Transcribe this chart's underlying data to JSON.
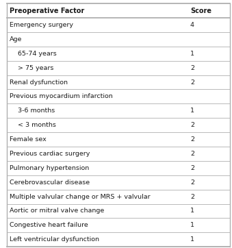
{
  "title_col1": "Preoperative Factor",
  "title_col2": "Score",
  "rows": [
    {
      "factor": "Emergency surgery",
      "score": "4",
      "indent": false,
      "header_row": false
    },
    {
      "factor": "Age",
      "score": "",
      "indent": false,
      "header_row": true
    },
    {
      "factor": "65-74 years",
      "score": "1",
      "indent": true,
      "header_row": false
    },
    {
      "factor": "> 75 years",
      "score": "2",
      "indent": true,
      "header_row": false
    },
    {
      "factor": "Renal dysfunction",
      "score": "2",
      "indent": false,
      "header_row": false
    },
    {
      "factor": "Previous myocardium infarction",
      "score": "",
      "indent": false,
      "header_row": true
    },
    {
      "factor": "3-6 months",
      "score": "1",
      "indent": true,
      "header_row": false
    },
    {
      "factor": "< 3 months",
      "score": "2",
      "indent": true,
      "header_row": false
    },
    {
      "factor": "Female sex",
      "score": "2",
      "indent": false,
      "header_row": false
    },
    {
      "factor": "Previous cardiac surgery",
      "score": "2",
      "indent": false,
      "header_row": false
    },
    {
      "factor": "Pulmonary hypertension",
      "score": "2",
      "indent": false,
      "header_row": false
    },
    {
      "factor": "Cerebrovascular disease",
      "score": "2",
      "indent": false,
      "header_row": false
    },
    {
      "factor": "Multiple valvular change or MRS + valvular",
      "score": "2",
      "indent": false,
      "header_row": false
    },
    {
      "factor": "Aortic or mitral valve change",
      "score": "1",
      "indent": false,
      "header_row": false
    },
    {
      "factor": "Congestive heart failure",
      "score": "1",
      "indent": false,
      "header_row": false
    },
    {
      "factor": "Left ventricular dysfunction",
      "score": "1",
      "indent": false,
      "header_row": false
    }
  ],
  "bg_color": "#ffffff",
  "header_bg": "#ffffff",
  "line_color": "#b0b0b0",
  "text_color": "#1a1a1a",
  "col_header_fontsize": 7.0,
  "row_fontsize": 6.8,
  "indent_prefix": "    "
}
